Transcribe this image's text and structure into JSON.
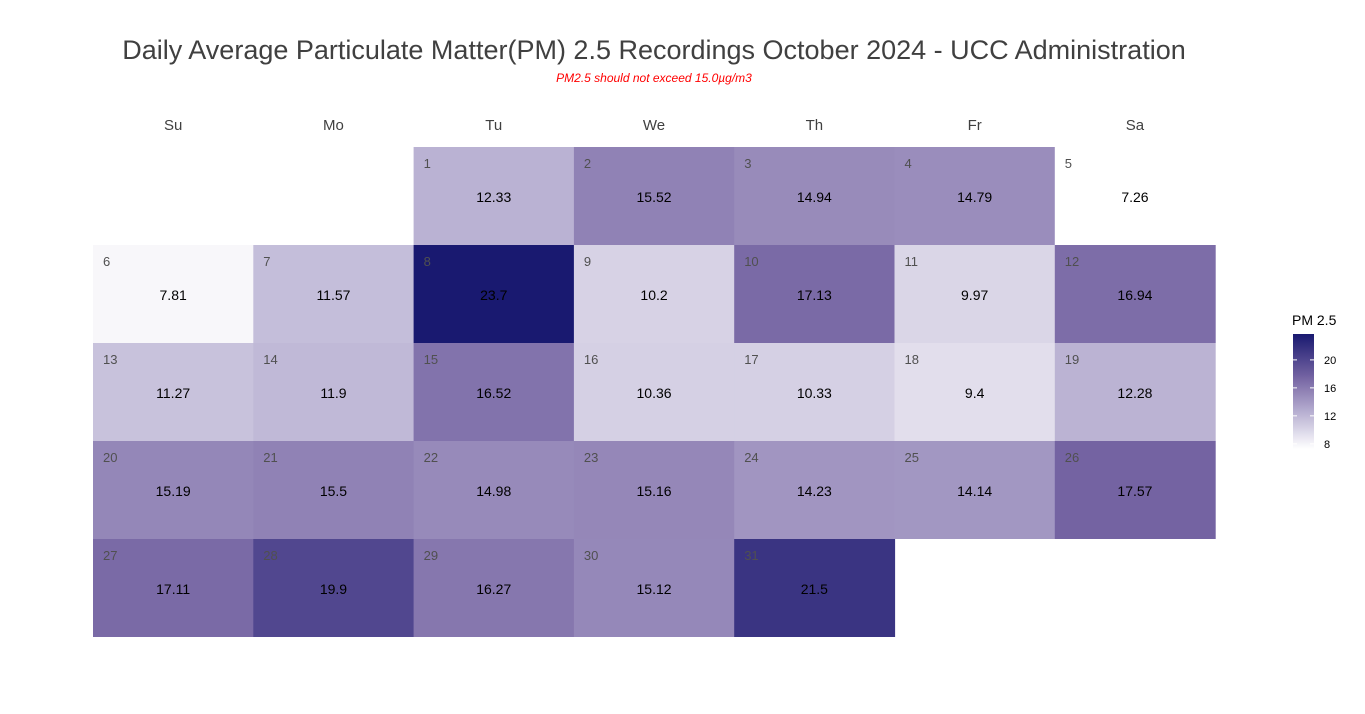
{
  "chart_data": {
    "type": "heatmap",
    "title": "Daily Average Particulate Matter(PM) 2.5 Recordings October 2024 -  UCC Administration",
    "subtitle": "PM2.5 should not exceed 15.0µg/m3",
    "weekdays": [
      "Su",
      "Mo",
      "Tu",
      "We",
      "Th",
      "Fr",
      "Sa"
    ],
    "month_start_weekday": 2,
    "days": [
      {
        "day": 1,
        "value": "12.33"
      },
      {
        "day": 2,
        "value": "15.52"
      },
      {
        "day": 3,
        "value": "14.94"
      },
      {
        "day": 4,
        "value": "14.79"
      },
      {
        "day": 5,
        "value": "7.26"
      },
      {
        "day": 6,
        "value": "7.81"
      },
      {
        "day": 7,
        "value": "11.57"
      },
      {
        "day": 8,
        "value": "23.7"
      },
      {
        "day": 9,
        "value": "10.2"
      },
      {
        "day": 10,
        "value": "17.13"
      },
      {
        "day": 11,
        "value": "9.97"
      },
      {
        "day": 12,
        "value": "16.94"
      },
      {
        "day": 13,
        "value": "11.27"
      },
      {
        "day": 14,
        "value": "11.9"
      },
      {
        "day": 15,
        "value": "16.52"
      },
      {
        "day": 16,
        "value": "10.36"
      },
      {
        "day": 17,
        "value": "10.33"
      },
      {
        "day": 18,
        "value": "9.4"
      },
      {
        "day": 19,
        "value": "12.28"
      },
      {
        "day": 20,
        "value": "15.19"
      },
      {
        "day": 21,
        "value": "15.5"
      },
      {
        "day": 22,
        "value": "14.98"
      },
      {
        "day": 23,
        "value": "15.16"
      },
      {
        "day": 24,
        "value": "14.23"
      },
      {
        "day": 25,
        "value": "14.14"
      },
      {
        "day": 26,
        "value": "17.57"
      },
      {
        "day": 27,
        "value": "17.11"
      },
      {
        "day": 28,
        "value": "19.9"
      },
      {
        "day": 29,
        "value": "16.27"
      },
      {
        "day": 30,
        "value": "15.12"
      },
      {
        "day": 31,
        "value": "21.5"
      }
    ],
    "legend": {
      "title": "PM 2.5",
      "ticks": [
        8,
        12,
        16,
        20
      ],
      "range": [
        7.26,
        23.7
      ],
      "placement": "right"
    },
    "color_stops": [
      {
        "value": 7.26,
        "color": "#ffffff"
      },
      {
        "value": 12.33,
        "color": "#bab2d3"
      },
      {
        "value": 15.52,
        "color": "#9082b5"
      },
      {
        "value": 17.57,
        "color": "#7463a2"
      },
      {
        "value": 23.7,
        "color": "#191970"
      }
    ],
    "colors": {
      "title": "#404040",
      "subtitle": "#ff0000",
      "day_number": "#505050",
      "value_text": "#000000"
    }
  }
}
